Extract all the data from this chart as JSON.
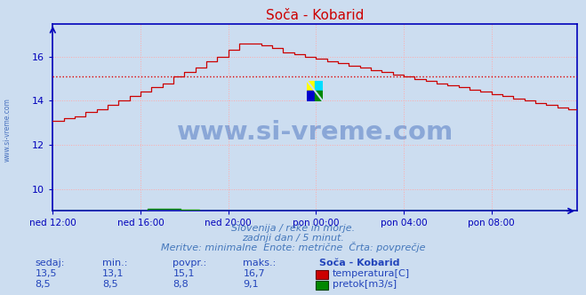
{
  "title": "Soča - Kobarid",
  "bg_color": "#ccddf0",
  "plot_bg_color": "#ccddf0",
  "grid_color": "#ffaaaa",
  "x_labels": [
    "ned 12:00",
    "ned 16:00",
    "ned 20:00",
    "pon 00:00",
    "pon 04:00",
    "pon 08:00"
  ],
  "x_ticks_pos": [
    0,
    48,
    96,
    144,
    192,
    240
  ],
  "total_points": 288,
  "temp_color": "#cc0000",
  "temp_avg_color": "#dd0000",
  "flow_color": "#008800",
  "flow_avg_color": "#00cc00",
  "axis_color": "#0000bb",
  "temp_avg": 15.1,
  "flow_avg": 8.8,
  "ylim_min": 9.0,
  "ylim_max": 17.5,
  "temp_yticks": [
    10,
    12,
    14,
    16
  ],
  "watermark_text": "www.si-vreme.com",
  "watermark_color": "#1144aa",
  "watermark_alpha": 0.35,
  "subtitle1": "Slovenija / reke in morje.",
  "subtitle2": "zadnji dan / 5 minut.",
  "subtitle3": "Meritve: minimalne  Enote: metrične  Črta: povprečje",
  "subtitle_color": "#4477bb",
  "table_headers": [
    "sedaj:",
    "min.:",
    "povpr.:",
    "maks.:",
    "Soča - Kobarid"
  ],
  "table_row1": [
    "13,5",
    "13,1",
    "15,1",
    "16,7",
    "temperatura[C]"
  ],
  "table_row2": [
    "8,5",
    "8,5",
    "8,8",
    "9,1",
    "pretok[m3/s]"
  ],
  "table_color": "#2244bb",
  "temp_box_color": "#cc0000",
  "flow_box_color": "#008800",
  "left_label": "www.si-vreme.com"
}
